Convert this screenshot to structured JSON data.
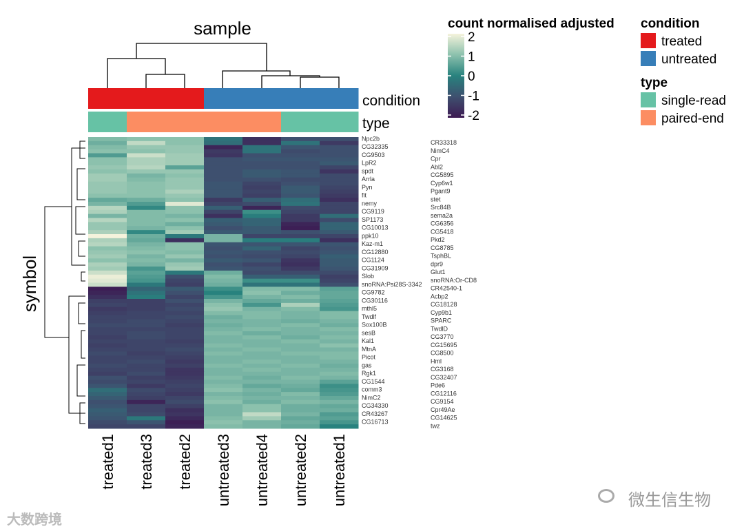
{
  "chart_data": {
    "type": "heatmap",
    "title": "sample",
    "ylabel": "symbol",
    "columns": [
      "treated1",
      "treated3",
      "treated2",
      "untreated3",
      "untreated4",
      "untreated2",
      "untreated1"
    ],
    "annotations": {
      "condition": {
        "label": "condition",
        "values": [
          "treated",
          "treated",
          "treated",
          "untreated",
          "untreated",
          "untreated",
          "untreated"
        ]
      },
      "type": {
        "label": "type",
        "values": [
          "single-read",
          "paired-end",
          "paired-end",
          "paired-end",
          "paired-end",
          "single-read",
          "single-read"
        ]
      }
    },
    "rows": [
      {
        "name": "Npc2b",
        "v": [
          0.9,
          1.0,
          1.0,
          -0.3,
          -1.6,
          -1.0,
          -1.0
        ]
      },
      {
        "name": "CR33318",
        "v": [
          0.7,
          1.5,
          1.0,
          -0.4,
          -1.6,
          -0.3,
          -1.4
        ]
      },
      {
        "name": "CG32335",
        "v": [
          0.9,
          1.1,
          1.1,
          -1.8,
          -0.3,
          -0.9,
          -1.0
        ]
      },
      {
        "name": "NimC4",
        "v": [
          1.0,
          1.0,
          1.1,
          -1.4,
          -0.3,
          -1.1,
          -1.0
        ]
      },
      {
        "name": "CG9503",
        "v": [
          0.4,
          1.6,
          1.2,
          -1.5,
          -1.0,
          -1.0,
          -1.0
        ]
      },
      {
        "name": "Cpr",
        "v": [
          1.0,
          1.3,
          1.2,
          -1.0,
          -0.9,
          -0.9,
          -0.9
        ]
      },
      {
        "name": "LpR2",
        "v": [
          1.0,
          1.3,
          1.2,
          -1.0,
          -1.0,
          -1.0,
          -0.8
        ]
      },
      {
        "name": "Abl2",
        "v": [
          1.1,
          1.4,
          0.5,
          -1.0,
          -1.0,
          -1.0,
          -1.2
        ]
      },
      {
        "name": "spdt",
        "v": [
          1.0,
          1.1,
          1.1,
          -1.0,
          -0.8,
          -0.9,
          -1.5
        ]
      },
      {
        "name": "CG5895",
        "v": [
          1.2,
          0.8,
          1.0,
          -1.0,
          -0.8,
          -0.9,
          -1.1
        ]
      },
      {
        "name": "Arrla",
        "v": [
          1.2,
          0.9,
          1.1,
          -1.0,
          -1.0,
          -1.1,
          -1.1
        ]
      },
      {
        "name": "Cyp6w1",
        "v": [
          1.1,
          1.0,
          1.1,
          -0.9,
          -1.2,
          -1.0,
          -1.1
        ]
      },
      {
        "name": "Pyn",
        "v": [
          1.1,
          1.0,
          1.1,
          -0.9,
          -1.3,
          -0.8,
          -1.2
        ]
      },
      {
        "name": "Pgant9",
        "v": [
          1.1,
          1.0,
          1.3,
          -0.9,
          -1.2,
          -0.8,
          -1.3
        ]
      },
      {
        "name": "fit",
        "v": [
          1.0,
          1.0,
          1.1,
          -0.9,
          -1.3,
          -0.9,
          -1.4
        ]
      },
      {
        "name": "stet",
        "v": [
          0.6,
          0.7,
          1.0,
          -1.4,
          -0.7,
          -0.4,
          -1.6
        ]
      },
      {
        "name": "nemy",
        "v": [
          0.8,
          0.4,
          1.8,
          -1.2,
          -1.1,
          -0.3,
          -1.2
        ]
      },
      {
        "name": "Src84B",
        "v": [
          1.4,
          0.1,
          1.0,
          -0.7,
          -1.8,
          -1.1,
          -1.2
        ]
      },
      {
        "name": "CG9119",
        "v": [
          1.3,
          0.9,
          1.0,
          -1.2,
          0.2,
          -1.2,
          -1.2
        ]
      },
      {
        "name": "sema2a",
        "v": [
          0.8,
          0.9,
          0.8,
          -1.6,
          -0.1,
          -1.4,
          -0.4
        ]
      },
      {
        "name": "SP1173",
        "v": [
          1.4,
          0.9,
          1.0,
          -0.7,
          -0.6,
          -1.4,
          -1.1
        ]
      },
      {
        "name": "CG6356",
        "v": [
          1.1,
          0.9,
          0.7,
          -0.8,
          -0.6,
          -1.8,
          -0.6
        ]
      },
      {
        "name": "CG10013",
        "v": [
          1.1,
          0.8,
          1.0,
          -1.0,
          -0.8,
          -1.9,
          -0.6
        ]
      },
      {
        "name": "CG5418",
        "v": [
          1.3,
          0.1,
          1.2,
          -0.8,
          -0.8,
          -1.0,
          -0.8
        ]
      },
      {
        "name": "ppk10",
        "v": [
          2.0,
          0.7,
          -0.2,
          0.8,
          -1.2,
          -1.2,
          -1.2
        ]
      },
      {
        "name": "Pkd2",
        "v": [
          1.3,
          0.6,
          -1.6,
          0.8,
          -0.1,
          -0.1,
          -1.6
        ]
      },
      {
        "name": "Kaz-m1",
        "v": [
          1.4,
          0.8,
          1.0,
          -0.9,
          -0.9,
          -0.9,
          -0.9
        ]
      },
      {
        "name": "CG8785",
        "v": [
          1.0,
          0.9,
          1.0,
          -1.0,
          -0.6,
          -1.2,
          -1.0
        ]
      },
      {
        "name": "CG12880",
        "v": [
          1.1,
          1.0,
          0.9,
          -0.9,
          -1.0,
          -1.1,
          -0.9
        ]
      },
      {
        "name": "TsphBL",
        "v": [
          1.2,
          0.8,
          1.1,
          -1.0,
          -1.1,
          -1.2,
          -0.7
        ]
      },
      {
        "name": "CG1124",
        "v": [
          1.0,
          0.9,
          0.8,
          -0.8,
          -0.9,
          -1.5,
          -0.8
        ]
      },
      {
        "name": "dpr9",
        "v": [
          1.3,
          0.8,
          1.1,
          -1.0,
          -1.2,
          -1.6,
          -0.8
        ]
      },
      {
        "name": "CG31909",
        "v": [
          1.2,
          0.3,
          1.2,
          -0.9,
          -1.0,
          -1.4,
          -0.9
        ]
      },
      {
        "name": "Glut1",
        "v": [
          1.6,
          0.5,
          -0.2,
          0.7,
          -1.1,
          -1.1,
          -1.1
        ]
      },
      {
        "name": "Slob",
        "v": [
          1.9,
          0.4,
          -1.0,
          0.9,
          -0.7,
          -0.7,
          -1.3
        ]
      },
      {
        "name": "snoRNA:Or-CD8",
        "v": [
          1.8,
          0.3,
          -1.2,
          0.8,
          0.2,
          0.2,
          -1.2
        ]
      },
      {
        "name": "snoRNA:Psi28S-3342",
        "v": [
          1.6,
          -0.2,
          -1.3,
          0.7,
          -0.3,
          -0.3,
          -1.0
        ]
      },
      {
        "name": "CR42540-1",
        "v": [
          -1.9,
          -0.6,
          -0.8,
          0.2,
          0.9,
          0.9,
          0.5
        ]
      },
      {
        "name": "CG9782",
        "v": [
          -1.8,
          -0.3,
          -1.0,
          0.0,
          1.0,
          0.7,
          0.6
        ]
      },
      {
        "name": "Acbp2",
        "v": [
          -1.6,
          -0.1,
          -1.2,
          0.3,
          0.8,
          0.9,
          0.6
        ]
      },
      {
        "name": "CG30116",
        "v": [
          -1.3,
          -1.3,
          -1.0,
          0.8,
          0.6,
          0.7,
          0.5
        ]
      },
      {
        "name": "CG18128",
        "v": [
          -1.2,
          -1.3,
          -1.2,
          1.0,
          0.3,
          1.3,
          0.4
        ]
      },
      {
        "name": "mthl5",
        "v": [
          -1.4,
          -1.3,
          -1.1,
          1.1,
          0.8,
          0.9,
          0.3
        ]
      },
      {
        "name": "Cyp9b1",
        "v": [
          -1.3,
          -1.2,
          -1.2,
          0.9,
          0.9,
          0.8,
          0.9
        ]
      },
      {
        "name": "Twdlf",
        "v": [
          -1.2,
          -1.2,
          -1.1,
          0.7,
          0.9,
          0.8,
          0.9
        ]
      },
      {
        "name": "SPARC",
        "v": [
          -1.2,
          -1.1,
          -1.2,
          0.8,
          0.8,
          0.7,
          0.8
        ]
      },
      {
        "name": "Sox100B",
        "v": [
          -1.1,
          -1.1,
          -1.3,
          0.7,
          0.8,
          0.9,
          0.7
        ]
      },
      {
        "name": "TwdlD",
        "v": [
          -1.2,
          -1.2,
          -1.2,
          0.8,
          0.9,
          0.8,
          0.9
        ]
      },
      {
        "name": "sesB",
        "v": [
          -1.2,
          -1.1,
          -1.2,
          0.9,
          0.7,
          0.8,
          0.8
        ]
      },
      {
        "name": "CG3770",
        "v": [
          -1.3,
          -1.1,
          -1.2,
          0.8,
          0.9,
          0.7,
          0.9
        ]
      },
      {
        "name": "Kal1",
        "v": [
          -1.2,
          -1.2,
          -1.3,
          0.8,
          0.8,
          0.9,
          0.8
        ]
      },
      {
        "name": "CG15695",
        "v": [
          -1.3,
          -1.2,
          -1.2,
          0.9,
          0.8,
          0.8,
          1.0
        ]
      },
      {
        "name": "MtnA",
        "v": [
          -1.2,
          -1.2,
          -1.1,
          0.8,
          0.9,
          0.8,
          0.8
        ]
      },
      {
        "name": "CG8500",
        "v": [
          -1.1,
          -1.3,
          -1.2,
          0.9,
          0.8,
          0.9,
          0.9
        ]
      },
      {
        "name": "Picot",
        "v": [
          -1.2,
          -1.2,
          -1.3,
          0.8,
          0.8,
          0.8,
          0.9
        ]
      },
      {
        "name": "Hml",
        "v": [
          -1.2,
          -1.1,
          -1.4,
          0.8,
          0.9,
          0.8,
          0.8
        ]
      },
      {
        "name": "gas",
        "v": [
          -1.1,
          -1.2,
          -1.3,
          0.9,
          0.8,
          0.9,
          0.7
        ]
      },
      {
        "name": "CG3168",
        "v": [
          -1.2,
          -1.2,
          -1.5,
          0.8,
          0.9,
          0.8,
          0.8
        ]
      },
      {
        "name": "Rgk1",
        "v": [
          -1.3,
          -1.1,
          -1.5,
          0.8,
          0.8,
          0.8,
          0.9
        ]
      },
      {
        "name": "CG32407",
        "v": [
          -1.0,
          -1.3,
          -1.4,
          0.9,
          0.7,
          0.9,
          0.8
        ]
      },
      {
        "name": "CG1544",
        "v": [
          -1.1,
          -1.2,
          -1.3,
          0.8,
          0.8,
          0.8,
          0.5
        ]
      },
      {
        "name": "Pde6",
        "v": [
          -0.9,
          -1.4,
          -1.2,
          0.9,
          0.6,
          0.7,
          0.2
        ]
      },
      {
        "name": "comm3",
        "v": [
          -0.4,
          -1.1,
          -1.3,
          1.0,
          0.8,
          0.6,
          0.3
        ]
      },
      {
        "name": "CG12116",
        "v": [
          -0.6,
          -1.2,
          -1.4,
          0.8,
          0.7,
          0.9,
          0.4
        ]
      },
      {
        "name": "NimC2",
        "v": [
          -0.8,
          -1.3,
          -1.2,
          0.9,
          0.8,
          0.8,
          0.6
        ]
      },
      {
        "name": "CG9154",
        "v": [
          -1.0,
          -1.8,
          -1.1,
          1.0,
          0.7,
          0.9,
          0.8
        ]
      },
      {
        "name": "CG34330",
        "v": [
          -0.9,
          -1.2,
          -1.3,
          0.8,
          1.0,
          0.7,
          0.6
        ]
      },
      {
        "name": "Cpr49Ae",
        "v": [
          -0.7,
          -1.2,
          -1.6,
          0.8,
          1.0,
          0.7,
          0.7
        ]
      },
      {
        "name": "CR43267",
        "v": [
          -0.8,
          -1.1,
          -1.5,
          0.8,
          1.5,
          0.8,
          0.4
        ]
      },
      {
        "name": "CG14625",
        "v": [
          -0.9,
          -0.2,
          -1.7,
          0.9,
          1.2,
          0.6,
          0.5
        ]
      },
      {
        "name": "CG16713",
        "v": [
          -1.1,
          -0.9,
          -1.9,
          1.0,
          0.8,
          0.7,
          0.3
        ]
      },
      {
        "name": "twz",
        "v": [
          -1.2,
          -1.2,
          -1.8,
          0.9,
          0.8,
          0.6,
          0.0
        ]
      }
    ],
    "color_scale": {
      "domain": [
        -2,
        -1,
        0,
        1,
        2
      ],
      "colors": [
        "#3d1a52",
        "#3e506f",
        "#28827e",
        "#8cc1ad",
        "#f5f3dc"
      ]
    },
    "legends": {
      "heat": {
        "title": "count normalised adjusted",
        "ticks": [
          "2",
          "1",
          "0",
          "-1",
          "-2"
        ]
      },
      "condition": {
        "title": "condition",
        "items": [
          {
            "label": "treated",
            "color": "#e41a1c"
          },
          {
            "label": "untreated",
            "color": "#377eb8"
          }
        ]
      },
      "type": {
        "title": "type",
        "items": [
          {
            "label": "single-read",
            "color": "#66c2a5"
          },
          {
            "label": "paired-end",
            "color": "#fc8d62"
          }
        ]
      }
    }
  },
  "watermarks": {
    "left": "大数跨境",
    "right": "微生信生物"
  }
}
